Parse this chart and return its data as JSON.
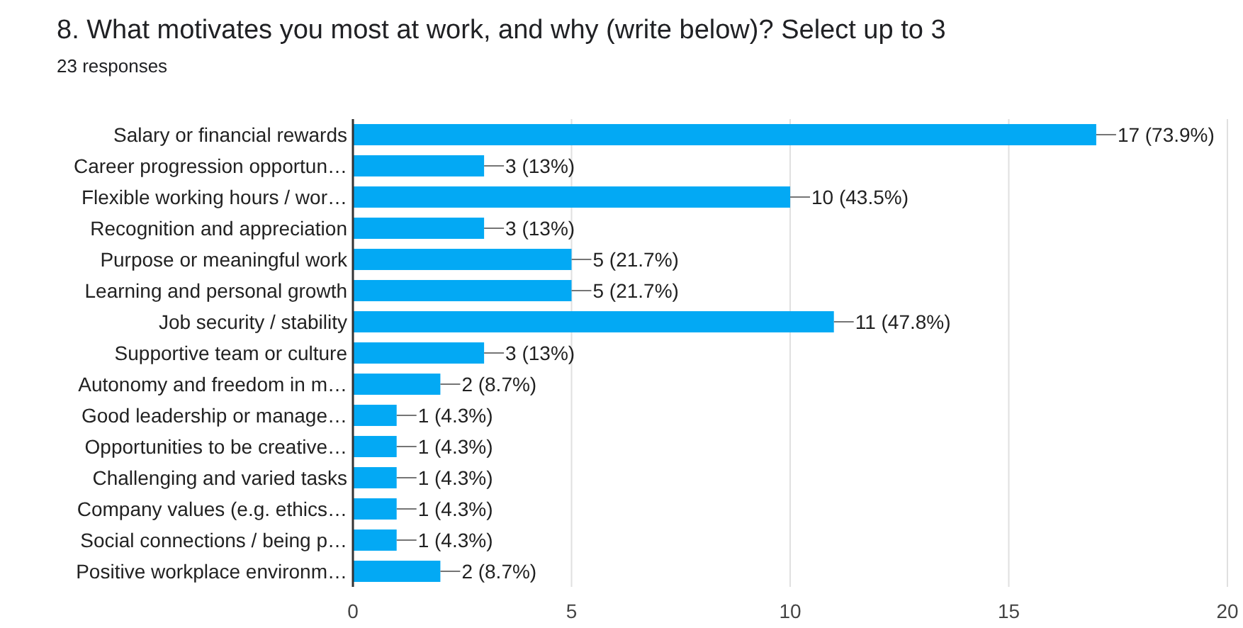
{
  "chart_data": {
    "type": "bar",
    "orientation": "horizontal",
    "title": "8. What motivates you most at work, and why (write below)? Select up to 3",
    "subtitle": "23 responses",
    "categories": [
      "Salary or financial rewards",
      "Career progression opportun…",
      "Flexible working hours / wor…",
      "Recognition and appreciation",
      "Purpose or meaningful work",
      "Learning and personal growth",
      "Job security / stability",
      "Supportive team or culture",
      "Autonomy and freedom in m…",
      "Good leadership or manage…",
      "Opportunities to be creative…",
      "Challenging and varied tasks",
      "Company values (e.g. ethics…",
      "Social connections / being p…",
      "Positive workplace environm…"
    ],
    "values": [
      17,
      3,
      10,
      3,
      5,
      5,
      11,
      3,
      2,
      1,
      1,
      1,
      1,
      1,
      2
    ],
    "value_labels": [
      "17 (73.9%)",
      "3 (13%)",
      "10 (43.5%)",
      "3 (13%)",
      "5 (21.7%)",
      "5 (21.7%)",
      "11 (47.8%)",
      "3 (13%)",
      "2 (8.7%)",
      "1 (4.3%)",
      "1 (4.3%)",
      "1 (4.3%)",
      "1 (4.3%)",
      "1 (4.3%)",
      "2 (8.7%)"
    ],
    "color": "#03a9f4",
    "xlim": [
      0,
      20
    ],
    "xticks": [
      0,
      5,
      10,
      15,
      20
    ],
    "grid": "x"
  }
}
